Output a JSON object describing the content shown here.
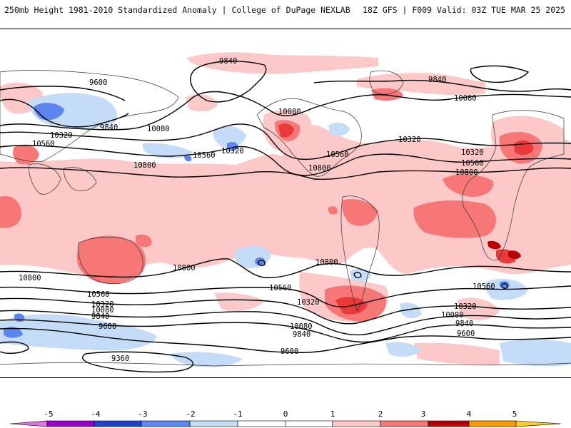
{
  "header": {
    "left": "250mb Height 1981-2010 Standardized Anomaly | College of DuPage NEXLAB",
    "right": "18Z GFS | F009 Valid: 03Z TUE MAR 25 2025"
  },
  "colors": {
    "m5": "#e070e0",
    "m4": "#9900cc",
    "m3": "#1f3fcf",
    "m2": "#5b86f0",
    "m1": "#c4dcf8",
    "zero": "#ffffff",
    "p1": "#fcc8c8",
    "p2": "#f77777",
    "p3": "#e83a3a",
    "p4": "#b80000",
    "p5": "#ff9900",
    "p5b": "#ffcc22"
  },
  "colorbar": {
    "ticks": [
      "-5",
      "-4",
      "-3",
      "-2",
      "-1",
      "0",
      "1",
      "2",
      "3",
      "4",
      "5"
    ]
  },
  "contour_labels": [
    {
      "id": "l9840a",
      "text": "9840"
    },
    {
      "id": "l9600a",
      "text": "9600"
    },
    {
      "id": "l9840b",
      "text": "9840"
    },
    {
      "id": "l10080a",
      "text": "10080"
    },
    {
      "id": "l10320a",
      "text": "10320"
    },
    {
      "id": "l10560a",
      "text": "10560"
    },
    {
      "id": "l10560b",
      "text": "10560"
    },
    {
      "id": "l10320b",
      "text": "10320"
    },
    {
      "id": "l10080b",
      "text": "10080"
    },
    {
      "id": "l10800a",
      "text": "10800"
    },
    {
      "id": "l10560c",
      "text": "10560"
    },
    {
      "id": "l9840c",
      "text": "9840"
    },
    {
      "id": "l10080c",
      "text": "10080"
    },
    {
      "id": "l10320c",
      "text": "10320"
    },
    {
      "id": "l10320d",
      "text": "10320"
    },
    {
      "id": "l10560d",
      "text": "10560"
    },
    {
      "id": "l10800b",
      "text": "10800"
    },
    {
      "id": "l10800c",
      "text": "10800"
    },
    {
      "id": "l10800d",
      "text": "10800"
    },
    {
      "id": "l10800e",
      "text": "10800"
    },
    {
      "id": "l10800f",
      "text": "10800"
    },
    {
      "id": "l10560e",
      "text": "10560"
    },
    {
      "id": "l10560f",
      "text": "10560"
    },
    {
      "id": "l10560g",
      "text": "10560"
    },
    {
      "id": "l10320e",
      "text": "10320"
    },
    {
      "id": "l10320f",
      "text": "10320"
    },
    {
      "id": "l10320g",
      "text": "10320"
    },
    {
      "id": "l10080d",
      "text": "10080"
    },
    {
      "id": "l10080e",
      "text": "10080"
    },
    {
      "id": "l10080f",
      "text": "10080"
    },
    {
      "id": "l9840d",
      "text": "9840"
    },
    {
      "id": "l9840e",
      "text": "9840"
    },
    {
      "id": "l9840f",
      "text": "9840"
    },
    {
      "id": "l9600b",
      "text": "9600"
    },
    {
      "id": "l9600c",
      "text": "9600"
    },
    {
      "id": "l9600d",
      "text": "9600"
    },
    {
      "id": "l9360a",
      "text": "9360"
    }
  ]
}
